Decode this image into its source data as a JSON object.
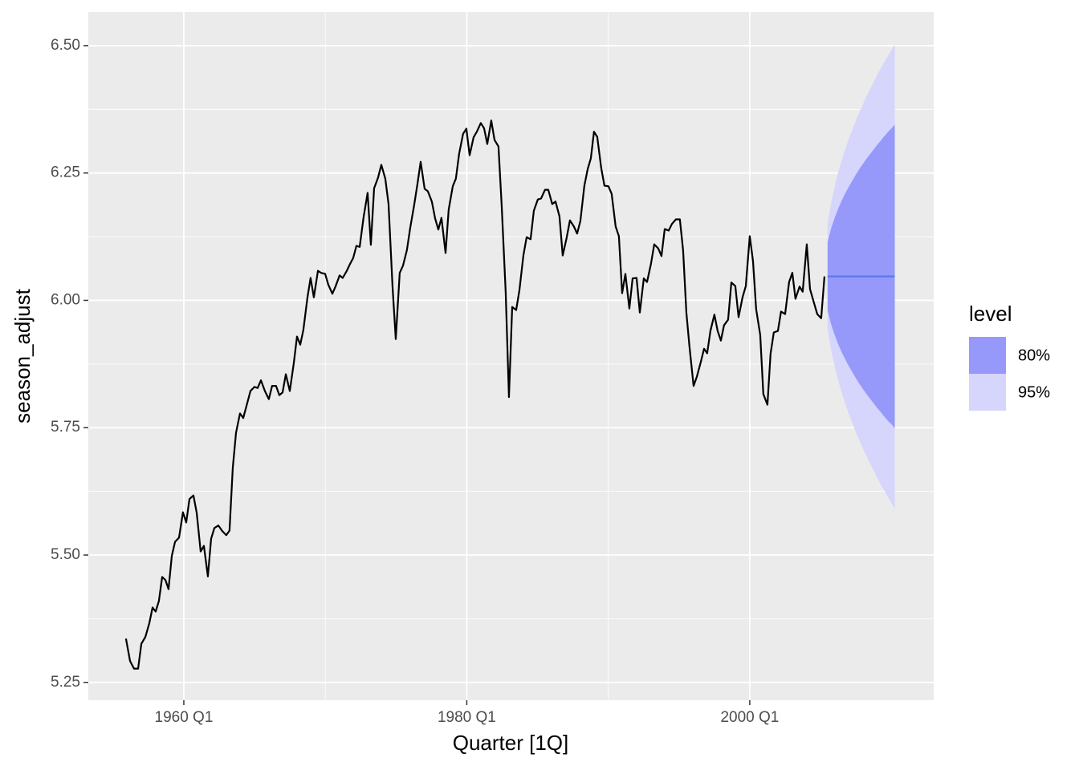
{
  "chart_data": {
    "type": "line",
    "x_label": "Quarter [1Q]",
    "y_label": "season_adjust",
    "xlim": [
      1953.25,
      2013.0
    ],
    "ylim": [
      5.215,
      6.566
    ],
    "xticks": [
      {
        "value": 1960,
        "label": "1960 Q1"
      },
      {
        "value": 1980,
        "label": "1980 Q1"
      },
      {
        "value": 2000,
        "label": "2000 Q1"
      }
    ],
    "yticks": [
      5.25,
      {
        "value": 5.5,
        "label": "5.50"
      },
      5.75,
      {
        "value": 6.0,
        "label": "6.00"
      },
      6.25,
      {
        "value": 6.5,
        "label": "6.50"
      }
    ],
    "grid": true,
    "x": [
      1955.91,
      1956.2,
      1956.48,
      1956.77,
      1957.0,
      1957.28,
      1957.56,
      1957.79,
      1958.01,
      1958.24,
      1958.47,
      1958.7,
      1958.92,
      1959.15,
      1959.38,
      1959.66,
      1959.94,
      1960.17,
      1960.4,
      1960.68,
      1960.91,
      1961.19,
      1961.42,
      1961.7,
      1961.93,
      1962.16,
      1962.44,
      1962.72,
      1963.0,
      1963.23,
      1963.46,
      1963.69,
      1963.97,
      1964.2,
      1964.48,
      1964.71,
      1964.99,
      1965.22,
      1965.45,
      1965.73,
      1966.01,
      1966.24,
      1966.52,
      1966.75,
      1966.98,
      1967.21,
      1967.49,
      1967.77,
      1968.0,
      1968.23,
      1968.45,
      1968.74,
      1968.96,
      1969.19,
      1969.48,
      1969.7,
      1969.99,
      1970.21,
      1970.5,
      1970.72,
      1971.01,
      1971.23,
      1971.52,
      1971.74,
      1971.97,
      1972.2,
      1972.43,
      1972.71,
      1972.99,
      1973.22,
      1973.45,
      1973.73,
      1973.96,
      1974.24,
      1974.47,
      1974.75,
      1974.98,
      1975.26,
      1975.49,
      1975.77,
      1976.0,
      1976.28,
      1976.51,
      1976.74,
      1977.02,
      1977.25,
      1977.53,
      1977.76,
      1977.99,
      1978.21,
      1978.5,
      1978.72,
      1979.01,
      1979.23,
      1979.46,
      1979.74,
      1979.97,
      1980.2,
      1980.48,
      1980.71,
      1980.99,
      1981.22,
      1981.45,
      1981.73,
      1981.96,
      1982.24,
      1982.47,
      1982.75,
      1982.98,
      1983.21,
      1983.49,
      1983.72,
      1984.0,
      1984.23,
      1984.51,
      1984.74,
      1985.02,
      1985.25,
      1985.53,
      1985.76,
      1986.04,
      1986.27,
      1986.55,
      1986.78,
      1987.06,
      1987.29,
      1987.57,
      1987.8,
      1988.03,
      1988.31,
      1988.54,
      1988.77,
      1988.99,
      1989.22,
      1989.5,
      1989.73,
      1990.01,
      1990.24,
      1990.52,
      1990.75,
      1990.98,
      1991.21,
      1991.49,
      1991.72,
      1992.0,
      1992.23,
      1992.51,
      1992.74,
      1993.02,
      1993.25,
      1993.53,
      1993.76,
      1993.99,
      1994.27,
      1994.5,
      1994.78,
      1995.06,
      1995.29,
      1995.52,
      1995.74,
      1996.03,
      1996.26,
      1996.54,
      1996.77,
      1996.99,
      1997.22,
      1997.5,
      1997.73,
      1997.96,
      1998.18,
      1998.47,
      1998.7,
      1998.98,
      1999.21,
      1999.49,
      1999.72,
      2000.0,
      2000.23,
      2000.45,
      2000.74,
      2000.96,
      2001.25,
      2001.47,
      2001.7,
      2001.99,
      2002.21,
      2002.5,
      2002.78,
      2003.01,
      2003.23,
      2003.52,
      2003.74,
      2004.03,
      2004.26,
      2004.54,
      2004.77,
      2005.05,
      2005.28
    ],
    "series": [
      {
        "color": "#000000",
        "values": [
          5.336,
          5.292,
          5.277,
          5.277,
          5.326,
          5.339,
          5.366,
          5.397,
          5.389,
          5.41,
          5.457,
          5.451,
          5.433,
          5.498,
          5.526,
          5.534,
          5.584,
          5.564,
          5.61,
          5.617,
          5.583,
          5.507,
          5.518,
          5.458,
          5.532,
          5.553,
          5.558,
          5.547,
          5.539,
          5.548,
          5.671,
          5.74,
          5.778,
          5.769,
          5.798,
          5.822,
          5.83,
          5.828,
          5.843,
          5.822,
          5.806,
          5.832,
          5.832,
          5.814,
          5.819,
          5.855,
          5.822,
          5.876,
          5.929,
          5.913,
          5.942,
          6.006,
          6.044,
          6.006,
          6.058,
          6.054,
          6.052,
          6.031,
          6.013,
          6.027,
          6.049,
          6.044,
          6.058,
          6.071,
          6.083,
          6.107,
          6.105,
          6.164,
          6.211,
          6.109,
          6.22,
          6.241,
          6.266,
          6.239,
          6.189,
          6.028,
          5.924,
          6.054,
          6.068,
          6.099,
          6.142,
          6.187,
          6.228,
          6.272,
          6.219,
          6.214,
          6.194,
          6.161,
          6.139,
          6.162,
          6.093,
          6.178,
          6.224,
          6.239,
          6.288,
          6.327,
          6.337,
          6.285,
          6.32,
          6.331,
          6.348,
          6.338,
          6.307,
          6.353,
          6.315,
          6.302,
          6.184,
          6.016,
          5.81,
          5.987,
          5.981,
          6.02,
          6.088,
          6.124,
          6.12,
          6.176,
          6.198,
          6.2,
          6.217,
          6.217,
          6.189,
          6.194,
          6.165,
          6.088,
          6.123,
          6.157,
          6.145,
          6.131,
          6.156,
          6.225,
          6.257,
          6.279,
          6.331,
          6.321,
          6.26,
          6.225,
          6.224,
          6.209,
          6.145,
          6.126,
          6.014,
          6.052,
          5.984,
          6.043,
          6.044,
          5.976,
          6.043,
          6.036,
          6.072,
          6.11,
          6.102,
          6.087,
          6.14,
          6.137,
          6.15,
          6.159,
          6.159,
          6.098,
          5.976,
          5.909,
          5.832,
          5.85,
          5.879,
          5.905,
          5.896,
          5.94,
          5.972,
          5.94,
          5.921,
          5.951,
          5.962,
          6.035,
          6.028,
          5.967,
          6.006,
          6.028,
          6.126,
          6.077,
          5.983,
          5.932,
          5.816,
          5.795,
          5.895,
          5.937,
          5.94,
          5.978,
          5.973,
          6.036,
          6.054,
          6.003,
          6.027,
          6.017,
          6.11,
          6.022,
          5.995,
          5.973,
          5.965,
          6.047
        ]
      }
    ],
    "forecast": {
      "x": [
        2005.5,
        2005.75,
        2006.0,
        2006.25,
        2006.5,
        2006.75,
        2007.0,
        2007.25,
        2007.5,
        2007.75,
        2008.0,
        2008.25,
        2008.5,
        2008.75,
        2009.0,
        2009.25,
        2009.5,
        2009.75,
        2010.0,
        2010.25
      ],
      "mean": [
        6.047,
        6.047,
        6.047,
        6.047,
        6.047,
        6.047,
        6.047,
        6.047,
        6.047,
        6.047,
        6.047,
        6.047,
        6.047,
        6.047,
        6.047,
        6.047,
        6.047,
        6.047,
        6.047,
        6.047
      ],
      "color": "#5a78f0",
      "legend_title": "level",
      "levels": [
        {
          "name": "80%",
          "color": "#9699fa",
          "upper": [
            6.114,
            6.141,
            6.162,
            6.18,
            6.196,
            6.21,
            6.223,
            6.235,
            6.247,
            6.258,
            6.268,
            6.278,
            6.287,
            6.296,
            6.305,
            6.313,
            6.322,
            6.33,
            6.337,
            6.345
          ],
          "lower": [
            5.98,
            5.953,
            5.932,
            5.914,
            5.898,
            5.884,
            5.871,
            5.859,
            5.847,
            5.836,
            5.826,
            5.816,
            5.807,
            5.798,
            5.789,
            5.781,
            5.772,
            5.764,
            5.757,
            5.749
          ]
        },
        {
          "name": "95%",
          "color": "#d6d5fb",
          "upper": [
            6.149,
            6.191,
            6.223,
            6.251,
            6.275,
            6.297,
            6.317,
            6.335,
            6.353,
            6.369,
            6.385,
            6.4,
            6.414,
            6.428,
            6.442,
            6.455,
            6.467,
            6.479,
            6.491,
            6.503
          ],
          "lower": [
            5.945,
            5.903,
            5.871,
            5.843,
            5.819,
            5.797,
            5.777,
            5.759,
            5.741,
            5.725,
            5.709,
            5.694,
            5.68,
            5.666,
            5.652,
            5.639,
            5.627,
            5.615,
            5.603,
            5.591
          ]
        }
      ]
    }
  }
}
